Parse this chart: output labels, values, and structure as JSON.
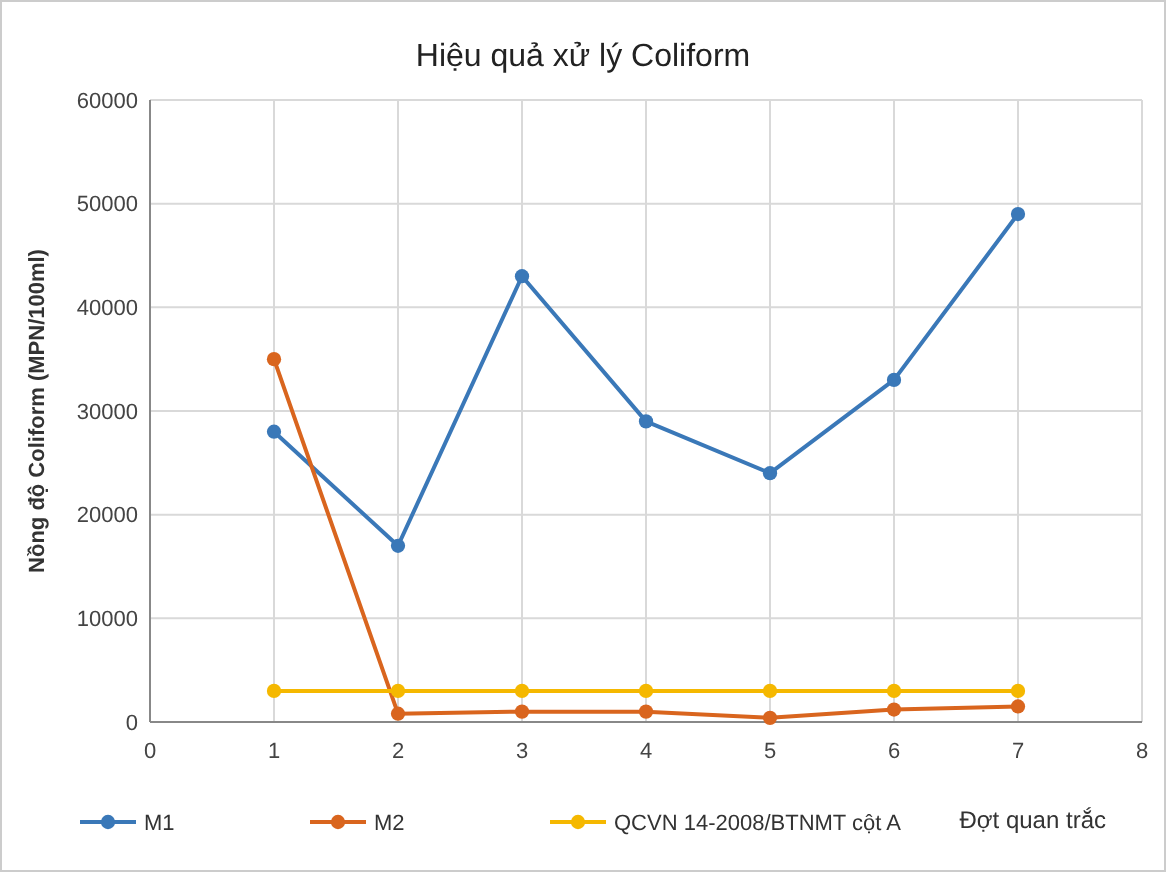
{
  "chart_data": {
    "type": "line",
    "title": "Hiệu quả xử lý Coliform",
    "xlabel": "Đợt quan trắc",
    "ylabel": "Nồng độ Coliform (MPN/100ml)",
    "x": [
      1,
      2,
      3,
      4,
      5,
      6,
      7
    ],
    "series": [
      {
        "name": "M1",
        "color": "#3a78b8",
        "values": [
          28000,
          17000,
          43000,
          29000,
          24000,
          33000,
          49000
        ]
      },
      {
        "name": "M2",
        "color": "#d9651e",
        "values": [
          35000,
          800,
          1000,
          1000,
          400,
          1200,
          1500
        ]
      },
      {
        "name": "QCVN 14-2008/BTNMT cột A",
        "color": "#f5b800",
        "values": [
          3000,
          3000,
          3000,
          3000,
          3000,
          3000,
          3000
        ]
      }
    ],
    "xlim": [
      0,
      8
    ],
    "xticks": [
      0,
      1,
      2,
      3,
      4,
      5,
      6,
      7,
      8
    ],
    "ylim": [
      0,
      60000
    ],
    "yticks": [
      0,
      10000,
      20000,
      30000,
      40000,
      50000,
      60000
    ],
    "grid": true,
    "legend": "bottom",
    "marker": "circle",
    "line_style": "solid"
  }
}
